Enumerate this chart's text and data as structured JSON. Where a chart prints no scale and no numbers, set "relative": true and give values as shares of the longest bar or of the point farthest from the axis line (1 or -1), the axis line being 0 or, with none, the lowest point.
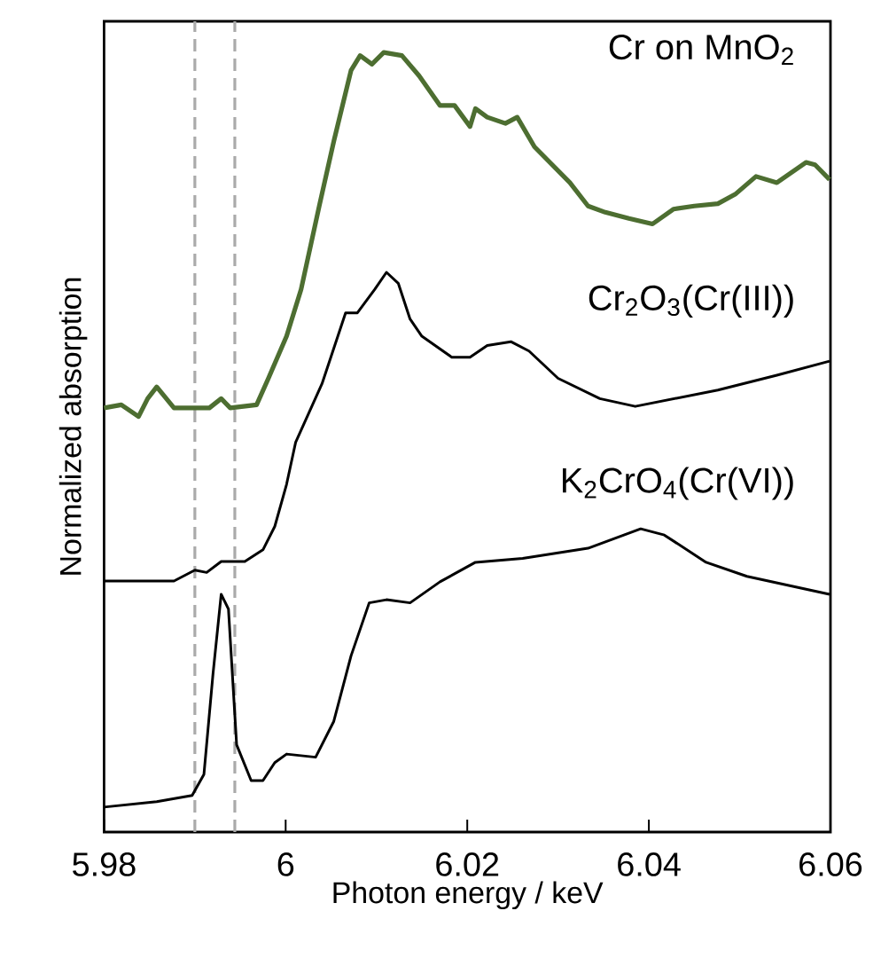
{
  "chart_data": {
    "type": "line",
    "relative": true,
    "xlabel": "Photon energy / keV",
    "ylabel": "Normalized  absorption",
    "xlim": [
      5.98,
      6.06
    ],
    "xticks": [
      5.98,
      6,
      6.02,
      6.04,
      6.06
    ],
    "tick_labels": "x",
    "grid": false,
    "marker": "none",
    "line_style": "solid",
    "ref_lines": [
      {
        "axis": "x",
        "value": 5.99,
        "color": "#aaaaaa",
        "line_style": "dashed"
      },
      {
        "axis": "x",
        "value": 5.9944,
        "color": "#aaaaaa",
        "line_style": "dashed"
      }
    ],
    "series": [
      {
        "name": "Cr on MnO$_{2}$",
        "color": "#4d6e31",
        "x": [
          5.98,
          5.9819,
          5.9838,
          5.9848,
          5.9858,
          5.9877,
          5.9897,
          5.9916,
          5.9929,
          5.9939,
          5.9968,
          5.9981,
          6.0001,
          6.0017,
          6.0037,
          6.0053,
          6.0072,
          6.0082,
          6.0095,
          6.0108,
          6.0128,
          6.0147,
          6.017,
          6.0186,
          6.0203,
          6.0209,
          6.0222,
          6.0242,
          6.0255,
          6.0274,
          6.0313,
          6.0333,
          6.0352,
          6.0378,
          6.0404,
          6.0427,
          6.045,
          6.0476,
          6.0495,
          6.0518,
          6.0541,
          6.0573,
          6.0583,
          6.0599
        ],
        "values": [
          0.544,
          0.548,
          0.533,
          0.556,
          0.571,
          0.544,
          0.544,
          0.544,
          0.556,
          0.544,
          0.548,
          0.582,
          0.636,
          0.696,
          0.803,
          0.886,
          0.977,
          0.996,
          0.985,
          1.0,
          0.996,
          0.97,
          0.932,
          0.932,
          0.905,
          0.928,
          0.917,
          0.909,
          0.917,
          0.879,
          0.833,
          0.803,
          0.795,
          0.787,
          0.78,
          0.799,
          0.803,
          0.806,
          0.818,
          0.841,
          0.833,
          0.859,
          0.856,
          0.837
        ]
      },
      {
        "name": "Cr$_{2}$O$_{3}$(Cr(III))",
        "color": "#000000",
        "x": [
          5.98,
          5.9877,
          5.99,
          5.9913,
          5.9929,
          5.9955,
          5.9975,
          5.9988,
          6.0001,
          6.0011,
          6.004,
          6.0066,
          6.0079,
          6.0098,
          6.0111,
          6.0124,
          6.0137,
          6.015,
          6.0183,
          6.0203,
          6.0222,
          6.0248,
          6.0268,
          6.03,
          6.0346,
          6.0385,
          6.0476,
          6.0541,
          6.0599
        ],
        "values": [
          0.322,
          0.322,
          0.336,
          0.333,
          0.347,
          0.347,
          0.362,
          0.392,
          0.446,
          0.5,
          0.575,
          0.666,
          0.666,
          0.696,
          0.718,
          0.704,
          0.658,
          0.636,
          0.609,
          0.609,
          0.624,
          0.629,
          0.617,
          0.582,
          0.556,
          0.546,
          0.567,
          0.586,
          0.604
        ]
      },
      {
        "name": "K$_{2}$CrO$_{4}$(Cr(VI))",
        "color": "#000000",
        "x": [
          5.98,
          5.9858,
          5.9897,
          5.991,
          5.992,
          5.9929,
          5.9937,
          5.9946,
          5.9962,
          5.9975,
          5.9988,
          6.0001,
          6.0033,
          6.0053,
          6.0072,
          6.0092,
          6.0111,
          6.0137,
          6.017,
          6.0209,
          6.0261,
          6.0333,
          6.0391,
          6.0417,
          6.0463,
          6.0508,
          6.0599
        ],
        "values": [
          0.032,
          0.039,
          0.047,
          0.074,
          0.203,
          0.305,
          0.286,
          0.112,
          0.066,
          0.066,
          0.089,
          0.1,
          0.096,
          0.142,
          0.226,
          0.294,
          0.298,
          0.294,
          0.321,
          0.346,
          0.351,
          0.364,
          0.389,
          0.381,
          0.346,
          0.328,
          0.305
        ]
      }
    ]
  }
}
